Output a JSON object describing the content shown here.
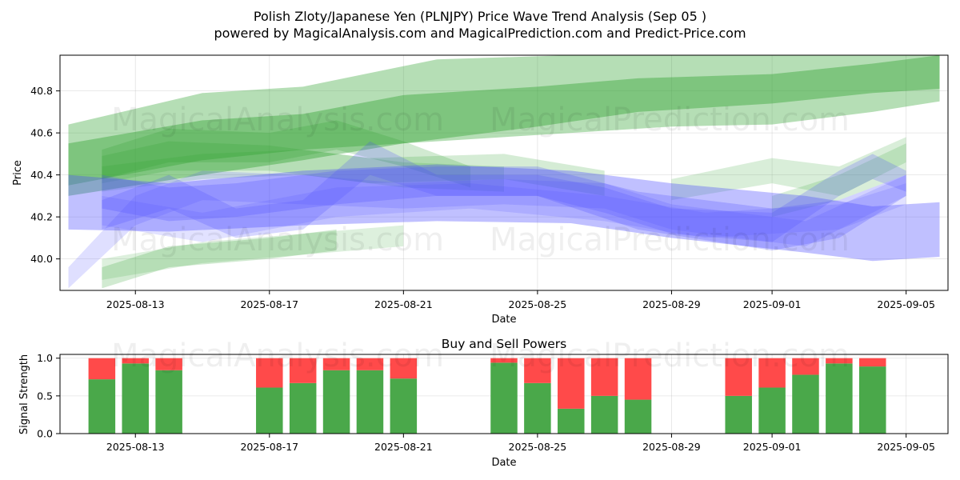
{
  "titles": {
    "main": "Polish Zloty/Japanese Yen (PLNJPY) Price Wave Trend Analysis (Sep 05 )",
    "sub": "powered by MagicalAnalysis.com and MagicalPrediction.com and Predict-Price.com"
  },
  "watermarks": [
    "MagicalAnalysis.com",
    "MagicalPrediction.com"
  ],
  "chart_data": [
    {
      "type": "area",
      "name": "price-wave",
      "title": "",
      "xlabel": "Date",
      "ylabel": "Price",
      "xlim": [
        "2025-08-10T18:00",
        "2025-09-06T06:00"
      ],
      "ylim": [
        39.85,
        40.97
      ],
      "x_ticks": [
        "2025-08-13",
        "2025-08-17",
        "2025-08-21",
        "2025-08-25",
        "2025-08-29",
        "2025-09-01",
        "2025-09-05"
      ],
      "y_ticks": [
        40.0,
        40.2,
        40.4,
        40.6,
        40.8
      ],
      "grid": true,
      "colors": {
        "green": "#2ca02c",
        "blue": "#4b4bff"
      },
      "bands": [
        {
          "color": "green",
          "opacity": 0.35,
          "x": [
            "2025-08-11",
            "2025-08-15",
            "2025-08-18",
            "2025-08-22",
            "2025-08-26",
            "2025-08-29",
            "2025-09-01",
            "2025-09-04",
            "2025-09-06"
          ],
          "upper": [
            40.64,
            40.79,
            40.82,
            40.95,
            40.97,
            40.97,
            40.97,
            40.97,
            40.97
          ],
          "lower": [
            40.35,
            40.47,
            40.52,
            40.56,
            40.6,
            40.63,
            40.64,
            40.7,
            40.75
          ]
        },
        {
          "color": "green",
          "opacity": 0.4,
          "x": [
            "2025-08-11",
            "2025-08-15",
            "2025-08-18",
            "2025-08-21",
            "2025-08-25",
            "2025-08-28",
            "2025-09-01",
            "2025-09-04",
            "2025-09-06"
          ],
          "upper": [
            40.55,
            40.66,
            40.69,
            40.78,
            40.82,
            40.86,
            40.88,
            40.93,
            40.97
          ],
          "lower": [
            40.3,
            40.4,
            40.47,
            40.55,
            40.63,
            40.7,
            40.74,
            40.79,
            40.81
          ]
        },
        {
          "color": "green",
          "opacity": 0.22,
          "x": [
            "2025-08-12",
            "2025-08-14",
            "2025-08-17",
            "2025-08-19",
            "2025-08-21",
            "2025-08-23"
          ],
          "upper": [
            40.52,
            40.62,
            40.6,
            40.66,
            40.56,
            40.44
          ],
          "lower": [
            40.38,
            40.46,
            40.46,
            40.52,
            40.44,
            40.34
          ]
        },
        {
          "color": "green",
          "opacity": 0.2,
          "x": [
            "2025-08-12",
            "2025-08-14",
            "2025-08-17",
            "2025-08-20",
            "2025-08-24",
            "2025-08-27"
          ],
          "upper": [
            40.49,
            40.56,
            40.54,
            40.48,
            40.5,
            40.42
          ],
          "lower": [
            40.36,
            40.42,
            40.42,
            40.36,
            40.38,
            40.3
          ]
        },
        {
          "color": "green",
          "opacity": 0.18,
          "x": [
            "2025-08-12",
            "2025-08-15",
            "2025-08-18",
            "2025-08-21",
            "2025-08-24"
          ],
          "upper": [
            40.44,
            40.5,
            40.52,
            40.46,
            40.44
          ],
          "lower": [
            40.32,
            40.38,
            40.4,
            40.34,
            40.32
          ]
        },
        {
          "color": "green",
          "opacity": 0.22,
          "x": [
            "2025-08-12",
            "2025-08-14",
            "2025-08-17",
            "2025-08-19"
          ],
          "upper": [
            39.96,
            40.06,
            40.1,
            40.14
          ],
          "lower": [
            39.86,
            39.96,
            40.0,
            40.04
          ]
        },
        {
          "color": "green",
          "opacity": 0.16,
          "x": [
            "2025-08-12",
            "2025-08-15",
            "2025-08-18",
            "2025-08-21"
          ],
          "upper": [
            40.0,
            40.08,
            40.12,
            40.16
          ],
          "lower": [
            39.9,
            39.98,
            40.02,
            40.06
          ]
        },
        {
          "color": "green",
          "opacity": 0.18,
          "x": [
            "2025-08-29",
            "2025-09-01",
            "2025-09-03",
            "2025-09-05"
          ],
          "upper": [
            40.38,
            40.48,
            40.44,
            40.58
          ],
          "lower": [
            40.28,
            40.36,
            40.3,
            40.46
          ]
        },
        {
          "color": "green",
          "opacity": 0.18,
          "x": [
            "2025-09-01",
            "2025-09-03",
            "2025-09-05"
          ],
          "upper": [
            40.3,
            40.4,
            40.55
          ],
          "lower": [
            40.2,
            40.28,
            40.4
          ]
        },
        {
          "color": "blue",
          "opacity": 0.35,
          "x": [
            "2025-08-11",
            "2025-08-14",
            "2025-08-18",
            "2025-08-22",
            "2025-08-26",
            "2025-08-29",
            "2025-09-02",
            "2025-09-04",
            "2025-09-06"
          ],
          "upper": [
            40.4,
            40.36,
            40.42,
            40.45,
            40.42,
            40.36,
            40.3,
            40.25,
            40.27
          ],
          "lower": [
            40.14,
            40.13,
            40.16,
            40.18,
            40.17,
            40.1,
            40.03,
            39.99,
            40.01
          ]
        },
        {
          "color": "blue",
          "opacity": 0.25,
          "x": [
            "2025-08-12",
            "2025-08-14",
            "2025-08-16",
            "2025-08-19",
            "2025-08-22",
            "2025-08-25",
            "2025-08-28",
            "2025-09-01",
            "2025-09-03",
            "2025-09-05"
          ],
          "upper": [
            40.4,
            40.34,
            40.36,
            40.42,
            40.44,
            40.44,
            40.32,
            40.24,
            40.28,
            40.4
          ],
          "lower": [
            40.24,
            40.18,
            40.2,
            40.26,
            40.3,
            40.3,
            40.14,
            40.04,
            40.1,
            40.3
          ]
        },
        {
          "color": "blue",
          "opacity": 0.22,
          "x": [
            "2025-08-12",
            "2025-08-14",
            "2025-08-16",
            "2025-08-18",
            "2025-08-20",
            "2025-08-22",
            "2025-08-25",
            "2025-08-27",
            "2025-08-29",
            "2025-09-01",
            "2025-09-03",
            "2025-09-04",
            "2025-09-05"
          ],
          "upper": [
            40.28,
            40.4,
            40.24,
            40.28,
            40.56,
            40.4,
            40.4,
            40.34,
            40.24,
            40.22,
            40.42,
            40.5,
            40.42
          ],
          "lower": [
            40.14,
            40.24,
            40.1,
            40.14,
            40.4,
            40.3,
            40.3,
            40.22,
            40.12,
            40.08,
            40.3,
            40.38,
            40.32
          ]
        },
        {
          "color": "blue",
          "opacity": 0.18,
          "x": [
            "2025-08-11",
            "2025-08-13",
            "2025-08-15",
            "2025-08-18",
            "2025-08-21",
            "2025-08-24",
            "2025-08-27",
            "2025-08-29",
            "2025-09-02",
            "2025-09-05"
          ],
          "upper": [
            39.96,
            40.3,
            40.42,
            40.4,
            40.36,
            40.38,
            40.36,
            40.26,
            40.18,
            40.4
          ],
          "lower": [
            39.86,
            40.16,
            40.28,
            40.26,
            40.24,
            40.26,
            40.24,
            40.14,
            40.06,
            40.3
          ]
        },
        {
          "color": "blue",
          "opacity": 0.16,
          "x": [
            "2025-08-12",
            "2025-08-15",
            "2025-08-19",
            "2025-08-23",
            "2025-08-27",
            "2025-08-30",
            "2025-09-03",
            "2025-09-05"
          ],
          "upper": [
            40.3,
            40.22,
            40.34,
            40.36,
            40.3,
            40.22,
            40.26,
            40.36
          ],
          "lower": [
            40.16,
            40.08,
            40.2,
            40.24,
            40.18,
            40.1,
            40.14,
            40.26
          ]
        }
      ]
    },
    {
      "type": "bar",
      "name": "buy-sell-powers",
      "title": "Buy and Sell Powers",
      "xlabel": "Date",
      "ylabel": "Signal Strength",
      "xlim": [
        "2025-08-10T18:00",
        "2025-09-06T06:00"
      ],
      "ylim": [
        0,
        1.05
      ],
      "x_ticks": [
        "2025-08-13",
        "2025-08-17",
        "2025-08-21",
        "2025-08-25",
        "2025-08-29",
        "2025-09-01",
        "2025-09-05"
      ],
      "y_ticks": [
        0.0,
        0.5,
        1.0
      ],
      "grid": true,
      "colors": {
        "buy": "#4aa84a",
        "sell": "#ff4a4a"
      },
      "dates": [
        "2025-08-12",
        "2025-08-13",
        "2025-08-14",
        "2025-08-17",
        "2025-08-18",
        "2025-08-19",
        "2025-08-20",
        "2025-08-21",
        "2025-08-24",
        "2025-08-25",
        "2025-08-26",
        "2025-08-27",
        "2025-08-28",
        "2025-08-31",
        "2025-09-01",
        "2025-09-02",
        "2025-09-03",
        "2025-09-04"
      ],
      "buy": [
        0.72,
        0.93,
        0.84,
        0.61,
        0.67,
        0.84,
        0.84,
        0.73,
        0.94,
        0.67,
        0.33,
        0.5,
        0.45,
        0.5,
        0.61,
        0.78,
        0.93,
        0.89
      ],
      "sell": [
        0.28,
        0.07,
        0.16,
        0.39,
        0.33,
        0.16,
        0.16,
        0.27,
        0.06,
        0.33,
        0.67,
        0.5,
        0.55,
        0.5,
        0.39,
        0.22,
        0.07,
        0.11
      ]
    }
  ]
}
